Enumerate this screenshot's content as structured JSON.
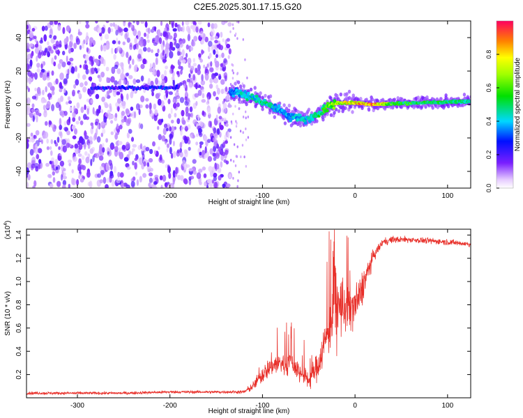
{
  "title": "C2E5.2025.301.17.15.G20",
  "colors": {
    "snr_line": "#e8302a",
    "scatter_noise": "#7a1fff",
    "axis": "#000000"
  },
  "chart_data": [
    {
      "id": "spectrogram",
      "type": "heatmap",
      "xlabel": "Height of straight line (km)",
      "ylabel": "Frequency (Hz)",
      "xlim": [
        -355,
        125
      ],
      "ylim": [
        -50,
        50
      ],
      "xticks": [
        -300,
        -200,
        -100,
        0,
        100
      ],
      "yticks": [
        -40,
        -20,
        0,
        20,
        40
      ],
      "colorbar": {
        "label": "Normalized spectral amplitude",
        "range": [
          0.0,
          1.0
        ],
        "ticks": [
          0.0,
          0.2,
          0.4,
          0.6,
          0.8
        ]
      },
      "noise_region_x": [
        -355,
        -135
      ],
      "faint_line": {
        "x": [
          -285,
          -190
        ],
        "freq": 10,
        "amplitude": 0.3
      },
      "signal_trace": [
        {
          "x": -135,
          "freq": 8,
          "amplitude": 0.35
        },
        {
          "x": -120,
          "freq": 6,
          "amplitude": 0.45
        },
        {
          "x": -110,
          "freq": 4,
          "amplitude": 0.45
        },
        {
          "x": -100,
          "freq": 2,
          "amplitude": 0.5
        },
        {
          "x": -90,
          "freq": -1,
          "amplitude": 0.45
        },
        {
          "x": -80,
          "freq": -4,
          "amplitude": 0.4
        },
        {
          "x": -70,
          "freq": -7,
          "amplitude": 0.4
        },
        {
          "x": -55,
          "freq": -9,
          "amplitude": 0.45
        },
        {
          "x": -45,
          "freq": -8,
          "amplitude": 0.45
        },
        {
          "x": -35,
          "freq": -3,
          "amplitude": 0.55
        },
        {
          "x": -20,
          "freq": 1,
          "amplitude": 0.7
        },
        {
          "x": 0,
          "freq": 1,
          "amplitude": 0.85
        },
        {
          "x": 20,
          "freq": 0,
          "amplitude": 0.95
        },
        {
          "x": 40,
          "freq": 0.5,
          "amplitude": 0.6
        },
        {
          "x": 70,
          "freq": 1,
          "amplitude": 0.55
        },
        {
          "x": 100,
          "freq": 1.5,
          "amplitude": 0.5
        },
        {
          "x": 125,
          "freq": 2,
          "amplitude": 0.5
        }
      ]
    },
    {
      "id": "snr",
      "type": "line",
      "xlabel": "Height of straight line (km)",
      "ylabel": "SNR (10 * v/v)",
      "yscale_label": "(x10",
      "yscale_exp": "4",
      "xlim": [
        -355,
        125
      ],
      "ylim": [
        0,
        1.45
      ],
      "xticks": [
        -300,
        -200,
        -100,
        0,
        100
      ],
      "yticks": [
        0.2,
        0.4,
        0.6,
        0.8,
        1.0,
        1.2,
        1.4
      ],
      "series": [
        {
          "name": "SNR",
          "x": [
            -355,
            -300,
            -250,
            -200,
            -150,
            -120,
            -110,
            -100,
            -90,
            -80,
            -75,
            -70,
            -60,
            -50,
            -40,
            -30,
            -25,
            -20,
            -15,
            -10,
            -5,
            0,
            5,
            10,
            20,
            30,
            40,
            60,
            80,
            100,
            125
          ],
          "y": [
            0.04,
            0.04,
            0.04,
            0.05,
            0.05,
            0.05,
            0.1,
            0.2,
            0.28,
            0.3,
            0.28,
            0.32,
            0.22,
            0.15,
            0.28,
            0.55,
            0.68,
            0.75,
            0.8,
            0.78,
            0.8,
            0.8,
            0.86,
            1.0,
            1.22,
            1.34,
            1.36,
            1.36,
            1.35,
            1.34,
            1.32
          ],
          "noise": [
            0.012,
            0.012,
            0.012,
            0.012,
            0.012,
            0.015,
            0.04,
            0.07,
            0.09,
            0.1,
            0.1,
            0.1,
            0.09,
            0.08,
            0.12,
            0.2,
            0.25,
            0.3,
            0.28,
            0.25,
            0.22,
            0.2,
            0.18,
            0.12,
            0.05,
            0.03,
            0.03,
            0.025,
            0.025,
            0.025,
            0.025
          ]
        }
      ]
    }
  ]
}
